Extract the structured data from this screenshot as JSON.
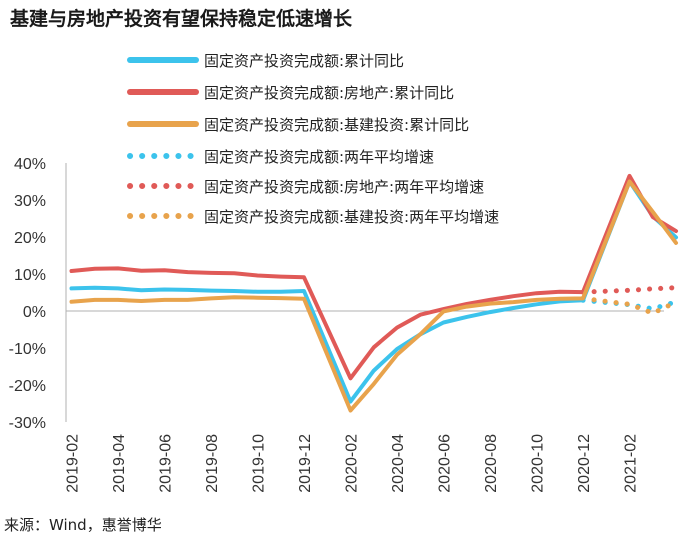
{
  "title": "基建与房地产投资有望保持稳定低速增长",
  "source": "来源：Wind，惠誉博华",
  "chart_data": {
    "type": "line",
    "title": "基建与房地产投资有望保持稳定低速增长",
    "xlabel": "",
    "ylabel": "",
    "ylim": [
      -30,
      40
    ],
    "y_ticks": [
      "40%",
      "30%",
      "20%",
      "10%",
      "0%",
      "-10%",
      "-20%",
      "-30%"
    ],
    "y_tick_values": [
      40,
      30,
      20,
      10,
      0,
      -10,
      -20,
      -30
    ],
    "x": [
      "2019-02",
      "2019-03",
      "2019-04",
      "2019-05",
      "2019-06",
      "2019-07",
      "2019-08",
      "2019-09",
      "2019-10",
      "2019-11",
      "2019-12",
      "2020-02",
      "2020-03",
      "2020-04",
      "2020-05",
      "2020-06",
      "2020-07",
      "2020-08",
      "2020-09",
      "2020-10",
      "2020-11",
      "2020-12",
      "2021-01",
      "2021-02",
      "2021-03",
      "2021-04"
    ],
    "x_tick_labels": [
      "2019-02",
      "2019-04",
      "2019-06",
      "2019-08",
      "2019-10",
      "2019-12",
      "2020-02",
      "2020-04",
      "2020-06",
      "2020-08",
      "2020-10",
      "2020-12",
      "2021-02"
    ],
    "legend_position": "top",
    "series": [
      {
        "name": "固定资产投资完成额:累计同比",
        "style": "solid",
        "color": "#3cc3ec",
        "x": [
          "2019-02",
          "2019-03",
          "2019-04",
          "2019-05",
          "2019-06",
          "2019-07",
          "2019-08",
          "2019-09",
          "2019-10",
          "2019-11",
          "2019-12",
          "2020-02",
          "2020-03",
          "2020-04",
          "2020-05",
          "2020-06",
          "2020-07",
          "2020-08",
          "2020-09",
          "2020-10",
          "2020-11",
          "2020-12",
          "2021-02",
          "2021-03",
          "2021-04"
        ],
        "values": [
          6.1,
          6.3,
          6.1,
          5.6,
          5.8,
          5.7,
          5.5,
          5.4,
          5.2,
          5.2,
          5.4,
          -24.5,
          -16.1,
          -10.3,
          -6.3,
          -3.1,
          -1.6,
          -0.3,
          0.8,
          1.8,
          2.6,
          2.9,
          35.0,
          25.6,
          19.9
        ]
      },
      {
        "name": "固定资产投资完成额:房地产:累计同比",
        "style": "solid",
        "color": "#e05a57",
        "x": [
          "2019-02",
          "2019-03",
          "2019-04",
          "2019-05",
          "2019-06",
          "2019-07",
          "2019-08",
          "2019-09",
          "2019-10",
          "2019-11",
          "2019-12",
          "2020-02",
          "2020-03",
          "2020-04",
          "2020-05",
          "2020-06",
          "2020-07",
          "2020-08",
          "2020-09",
          "2020-10",
          "2020-11",
          "2020-12",
          "2021-02",
          "2021-03",
          "2021-04"
        ],
        "values": [
          10.8,
          11.4,
          11.5,
          10.9,
          11.0,
          10.5,
          10.3,
          10.2,
          9.6,
          9.3,
          9.1,
          -18.2,
          -9.8,
          -4.5,
          -1.0,
          0.5,
          1.9,
          3.0,
          4.0,
          4.8,
          5.2,
          5.1,
          36.5,
          25.4,
          21.6
        ]
      },
      {
        "name": "固定资产投资完成额:基建投资:累计同比",
        "style": "solid",
        "color": "#e8a34c",
        "x": [
          "2019-02",
          "2019-03",
          "2019-04",
          "2019-05",
          "2019-06",
          "2019-07",
          "2019-08",
          "2019-09",
          "2019-10",
          "2019-11",
          "2019-12",
          "2020-02",
          "2020-03",
          "2020-04",
          "2020-05",
          "2020-06",
          "2020-07",
          "2020-08",
          "2020-09",
          "2020-10",
          "2020-11",
          "2020-12",
          "2021-02",
          "2021-03",
          "2021-04"
        ],
        "values": [
          2.5,
          3.0,
          3.0,
          2.7,
          3.0,
          3.0,
          3.4,
          3.7,
          3.6,
          3.5,
          3.3,
          -26.9,
          -19.7,
          -11.8,
          -6.3,
          -0.1,
          1.2,
          2.0,
          2.4,
          3.0,
          3.3,
          3.4,
          35.0,
          26.8,
          18.4
        ]
      },
      {
        "name": "固定资产投资完成额:两年平均增速",
        "style": "dotted",
        "color": "#3cc3ec",
        "x": [
          "2020-12",
          "2021-02",
          "2021-03",
          "2021-04"
        ],
        "values": [
          2.9,
          1.7,
          0.6,
          2.5
        ]
      },
      {
        "name": "固定资产投资完成额:房地产:两年平均增速",
        "style": "dotted",
        "color": "#e05a57",
        "x": [
          "2020-12",
          "2021-02",
          "2021-03",
          "2021-04"
        ],
        "values": [
          5.1,
          5.6,
          6.0,
          6.3
        ]
      },
      {
        "name": "固定资产投资完成额:基建投资:两年平均增速",
        "style": "dotted",
        "color": "#e8a34c",
        "x": [
          "2020-12",
          "2021-02",
          "2021-03",
          "2021-04"
        ],
        "values": [
          3.4,
          1.8,
          -0.6,
          2.4
        ]
      }
    ]
  }
}
